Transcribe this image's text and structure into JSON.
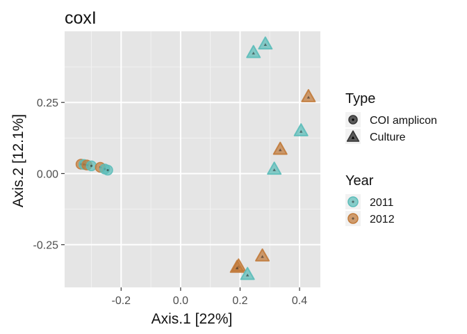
{
  "chart_data": {
    "type": "scatter",
    "title": "coxI",
    "xlabel": "Axis.1   [22%]",
    "ylabel": "Axis.2   [12.1%]",
    "xlim": [
      -0.39,
      0.47
    ],
    "ylim": [
      -0.4,
      0.5
    ],
    "x_ticks": [
      -0.2,
      0.0,
      0.2,
      0.4
    ],
    "x_tick_labels": [
      "-0.2",
      "0.0",
      "0.2",
      "0.4"
    ],
    "y_ticks": [
      0.25,
      0.0,
      -0.25
    ],
    "y_tick_labels": [
      "0.25",
      "0.00",
      "-0.25"
    ],
    "grid": true,
    "legend_position": "right",
    "legends": [
      {
        "title": "Type",
        "entries": [
          {
            "label": "COI amplicon",
            "shape": "circle"
          },
          {
            "label": "Culture",
            "shape": "triangle"
          }
        ]
      },
      {
        "title": "Year",
        "entries": [
          {
            "label": "2011",
            "color": "#5bbcb9"
          },
          {
            "label": "2012",
            "color": "#c17a3a"
          }
        ]
      }
    ],
    "points": [
      {
        "x": -0.335,
        "y": 0.033,
        "type": "COI amplicon",
        "year": "2012"
      },
      {
        "x": -0.325,
        "y": 0.032,
        "type": "COI amplicon",
        "year": "2011"
      },
      {
        "x": -0.315,
        "y": 0.03,
        "type": "COI amplicon",
        "year": "2012"
      },
      {
        "x": -0.3,
        "y": 0.027,
        "type": "COI amplicon",
        "year": "2011"
      },
      {
        "x": -0.27,
        "y": 0.022,
        "type": "COI amplicon",
        "year": "2012"
      },
      {
        "x": -0.255,
        "y": 0.016,
        "type": "COI amplicon",
        "year": "2011"
      },
      {
        "x": -0.245,
        "y": 0.012,
        "type": "COI amplicon",
        "year": "2011"
      },
      {
        "x": 0.285,
        "y": 0.455,
        "type": "Culture",
        "year": "2011"
      },
      {
        "x": 0.245,
        "y": 0.425,
        "type": "Culture",
        "year": "2011"
      },
      {
        "x": 0.43,
        "y": 0.27,
        "type": "Culture",
        "year": "2012"
      },
      {
        "x": 0.405,
        "y": 0.15,
        "type": "Culture",
        "year": "2011"
      },
      {
        "x": 0.335,
        "y": 0.085,
        "type": "Culture",
        "year": "2012"
      },
      {
        "x": 0.315,
        "y": 0.015,
        "type": "Culture",
        "year": "2011"
      },
      {
        "x": 0.275,
        "y": -0.29,
        "type": "Culture",
        "year": "2012"
      },
      {
        "x": 0.195,
        "y": -0.325,
        "type": "Culture",
        "year": "2012"
      },
      {
        "x": 0.19,
        "y": -0.33,
        "type": "Culture",
        "year": "2012"
      },
      {
        "x": 0.225,
        "y": -0.355,
        "type": "Culture",
        "year": "2011"
      }
    ]
  },
  "colors": {
    "panel_bg": "#e5e5e5",
    "grid_major": "#ffffff",
    "grid_minor": "#f2f2f2",
    "year_2011": "#5bbcb9",
    "year_2012": "#c17a3a",
    "legend_neutral": "#333333"
  }
}
